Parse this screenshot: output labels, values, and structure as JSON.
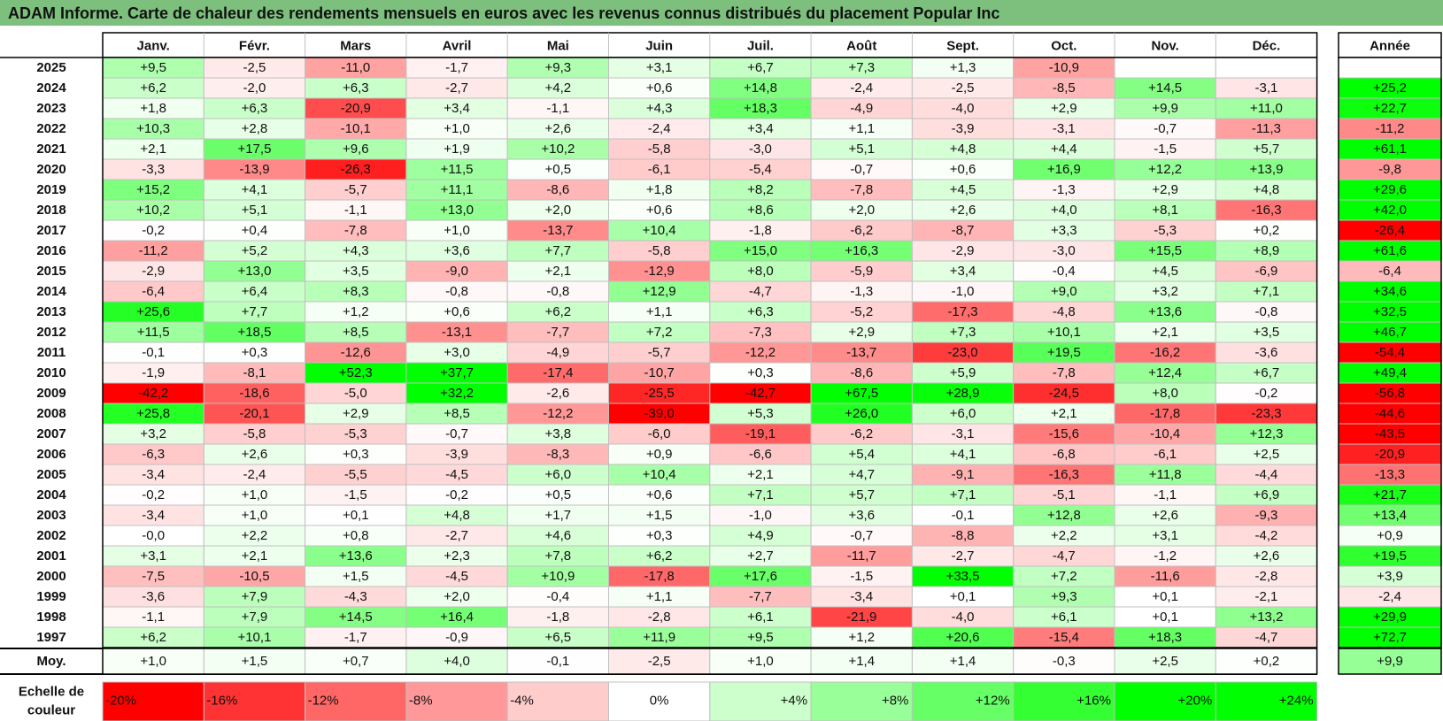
{
  "title": "ADAM Informe. Carte de chaleur des rendements mensuels en euros avec les revenus connus distribués du placement Popular Inc",
  "colors": {
    "title_bg": "#7dc07d",
    "neg_max": "#ff0000",
    "pos_max": "#00ff00",
    "zero": "#ffffff",
    "grid": "#c0c0c0",
    "border": "#000000"
  },
  "chart_data": {
    "type": "heatmap",
    "months": [
      "Janv.",
      "Févr.",
      "Mars",
      "Avril",
      "Mai",
      "Juin",
      "Juil.",
      "Août",
      "Sept.",
      "Oct.",
      "Nov.",
      "Déc."
    ],
    "year_header": "Année",
    "years": [
      "2025",
      "2024",
      "2023",
      "2022",
      "2021",
      "2020",
      "2019",
      "2018",
      "2017",
      "2016",
      "2015",
      "2014",
      "2013",
      "2012",
      "2011",
      "2010",
      "2009",
      "2008",
      "2007",
      "2006",
      "2005",
      "2004",
      "2003",
      "2002",
      "2001",
      "2000",
      "1999",
      "1998",
      "1997"
    ],
    "values": [
      [
        "+9,5",
        "-2,5",
        "-11,0",
        "-1,7",
        "+9,3",
        "+3,1",
        "+6,7",
        "+7,3",
        "+1,3",
        "-10,9",
        "",
        ""
      ],
      [
        "+6,2",
        "-2,0",
        "+6,3",
        "-2,7",
        "+4,2",
        "+0,6",
        "+14,8",
        "-2,4",
        "-2,5",
        "-8,5",
        "+14,5",
        "-3,1"
      ],
      [
        "+1,8",
        "+6,3",
        "-20,9",
        "+3,4",
        "-1,1",
        "+4,3",
        "+18,3",
        "-4,9",
        "-4,0",
        "+2,9",
        "+9,9",
        "+11,0"
      ],
      [
        "+10,3",
        "+2,8",
        "-10,1",
        "+1,0",
        "+2,6",
        "-2,4",
        "+3,4",
        "+1,1",
        "-3,9",
        "-3,1",
        "-0,7",
        "-11,3"
      ],
      [
        "+2,1",
        "+17,5",
        "+9,6",
        "+1,9",
        "+10,2",
        "-5,8",
        "-3,0",
        "+5,1",
        "+4,8",
        "+4,4",
        "-1,5",
        "+5,7"
      ],
      [
        "-3,3",
        "-13,9",
        "-26,3",
        "+11,5",
        "+0,5",
        "-6,1",
        "-5,4",
        "-0,7",
        "+0,6",
        "+16,9",
        "+12,2",
        "+13,9"
      ],
      [
        "+15,2",
        "+4,1",
        "-5,7",
        "+11,1",
        "-8,6",
        "+1,8",
        "+8,2",
        "-7,8",
        "+4,5",
        "-1,3",
        "+2,9",
        "+4,8"
      ],
      [
        "+10,2",
        "+5,1",
        "-1,1",
        "+13,0",
        "+2,0",
        "+0,6",
        "+8,6",
        "+2,0",
        "+2,6",
        "+4,0",
        "+8,1",
        "-16,3"
      ],
      [
        "-0,2",
        "+0,4",
        "-7,8",
        "+1,0",
        "-13,7",
        "+10,4",
        "-1,8",
        "-6,2",
        "-8,7",
        "+3,3",
        "-5,3",
        "+0,2"
      ],
      [
        "-11,2",
        "+5,2",
        "+4,3",
        "+3,6",
        "+7,7",
        "-5,8",
        "+15,0",
        "+16,3",
        "-2,9",
        "-3,0",
        "+15,5",
        "+8,9"
      ],
      [
        "-2,9",
        "+13,0",
        "+3,5",
        "-9,0",
        "+2,1",
        "-12,9",
        "+8,0",
        "-5,9",
        "+3,4",
        "-0,4",
        "+4,5",
        "-6,9"
      ],
      [
        "-6,4",
        "+6,4",
        "+8,3",
        "-0,8",
        "-0,8",
        "+12,9",
        "-4,7",
        "-1,3",
        "-1,0",
        "+9,0",
        "+3,2",
        "+7,1"
      ],
      [
        "+25,6",
        "+7,7",
        "+1,2",
        "+0,6",
        "+6,2",
        "+1,1",
        "+6,3",
        "-5,2",
        "-17,3",
        "-4,8",
        "+13,6",
        "-0,8"
      ],
      [
        "+11,5",
        "+18,5",
        "+8,5",
        "-13,1",
        "-7,7",
        "+7,2",
        "-7,3",
        "+2,9",
        "+7,3",
        "+10,1",
        "+2,1",
        "+3,5"
      ],
      [
        "-0,1",
        "+0,3",
        "-12,6",
        "+3,0",
        "-4,9",
        "-5,7",
        "-12,2",
        "-13,7",
        "-23,0",
        "+19,5",
        "-16,2",
        "-3,6"
      ],
      [
        "-1,9",
        "-8,1",
        "+52,3",
        "+37,7",
        "-17,4",
        "-10,7",
        "+0,3",
        "-8,6",
        "+5,9",
        "-7,8",
        "+12,4",
        "+6,7"
      ],
      [
        "-42,2",
        "-18,6",
        "-5,0",
        "+32,2",
        "-2,6",
        "-25,5",
        "-42,7",
        "+67,5",
        "+28,9",
        "-24,5",
        "+8,0",
        "-0,2"
      ],
      [
        "+25,8",
        "-20,1",
        "+2,9",
        "+8,5",
        "-12,2",
        "-39,0",
        "+5,3",
        "+26,0",
        "+6,0",
        "+2,1",
        "-17,8",
        "-23,3"
      ],
      [
        "+3,2",
        "-5,8",
        "-5,3",
        "-0,7",
        "+3,8",
        "-6,0",
        "-19,1",
        "-6,2",
        "-3,1",
        "-15,6",
        "-10,4",
        "+12,3"
      ],
      [
        "-6,3",
        "+2,6",
        "+0,3",
        "-3,9",
        "-8,3",
        "+0,9",
        "-6,6",
        "+5,4",
        "+4,1",
        "-6,8",
        "-6,1",
        "+2,5"
      ],
      [
        "-3,4",
        "-2,4",
        "-5,5",
        "-4,5",
        "+6,0",
        "+10,4",
        "+2,1",
        "+4,7",
        "-9,1",
        "-16,3",
        "+11,8",
        "-4,4"
      ],
      [
        "-0,2",
        "+1,0",
        "-1,5",
        "-0,2",
        "+0,5",
        "+0,6",
        "+7,1",
        "+5,7",
        "+7,1",
        "-5,1",
        "-1,1",
        "+6,9"
      ],
      [
        "-3,4",
        "+1,0",
        "+0,1",
        "+4,8",
        "+1,7",
        "+1,5",
        "-1,0",
        "+3,6",
        "-0,1",
        "+12,8",
        "+2,6",
        "-9,3"
      ],
      [
        "-0,0",
        "+2,2",
        "+0,8",
        "-2,7",
        "+4,6",
        "+0,3",
        "+4,9",
        "-0,7",
        "-8,8",
        "+2,2",
        "+3,1",
        "-4,2"
      ],
      [
        "+3,1",
        "+2,1",
        "+13,6",
        "+2,3",
        "+7,8",
        "+6,2",
        "+2,7",
        "-11,7",
        "-2,7",
        "-4,7",
        "-1,2",
        "+2,6"
      ],
      [
        "-7,5",
        "-10,5",
        "+1,5",
        "-4,5",
        "+10,9",
        "-17,8",
        "+17,6",
        "-1,5",
        "+33,5",
        "+7,2",
        "-11,6",
        "-2,8"
      ],
      [
        "-3,6",
        "+7,9",
        "-4,3",
        "+2,0",
        "-0,4",
        "+1,1",
        "-7,7",
        "-3,4",
        "+0,1",
        "+9,3",
        "+0,1",
        "-2,1"
      ],
      [
        "-1,1",
        "+7,9",
        "+14,5",
        "+16,4",
        "-1,8",
        "-2,8",
        "+6,1",
        "-21,9",
        "-4,0",
        "+6,1",
        "+0,1",
        "+13,2"
      ],
      [
        "+6,2",
        "+10,1",
        "-1,7",
        "-0,9",
        "+6,5",
        "+11,9",
        "+9,5",
        "+1,2",
        "+20,6",
        "-15,4",
        "+18,3",
        "-4,7"
      ]
    ],
    "annual": [
      "",
      "+25,2",
      "+22,7",
      "-11,2",
      "+61,1",
      "-9,8",
      "+29,6",
      "+42,0",
      "-26,4",
      "+61,6",
      "-6,4",
      "+34,6",
      "+32,5",
      "+46,7",
      "-54,4",
      "+49,4",
      "-56,8",
      "-44,6",
      "-43,5",
      "-20,9",
      "-13,3",
      "+21,7",
      "+13,4",
      "+0,9",
      "+19,5",
      "+3,9",
      "-2,4",
      "+29,9",
      "+72,7"
    ],
    "avg_label": "Moy.",
    "avg_values": [
      "+1,0",
      "+1,5",
      "+0,7",
      "+4,0",
      "-0,1",
      "-2,5",
      "+1,0",
      "+1,4",
      "+1,4",
      "-0,3",
      "+2,5",
      "+0,2"
    ],
    "avg_annual": "+9,9",
    "legend": {
      "label_line1": "Echelle de",
      "label_line2": "couleur",
      "steps": [
        "-20%",
        "-16%",
        "-12%",
        "-8%",
        "-4%",
        "0%",
        "+4%",
        "+8%",
        "+12%",
        "+16%",
        "+20%",
        "+24%"
      ],
      "step_values": [
        -20,
        -16,
        -12,
        -8,
        -4,
        0,
        4,
        8,
        12,
        16,
        20,
        24
      ]
    }
  }
}
